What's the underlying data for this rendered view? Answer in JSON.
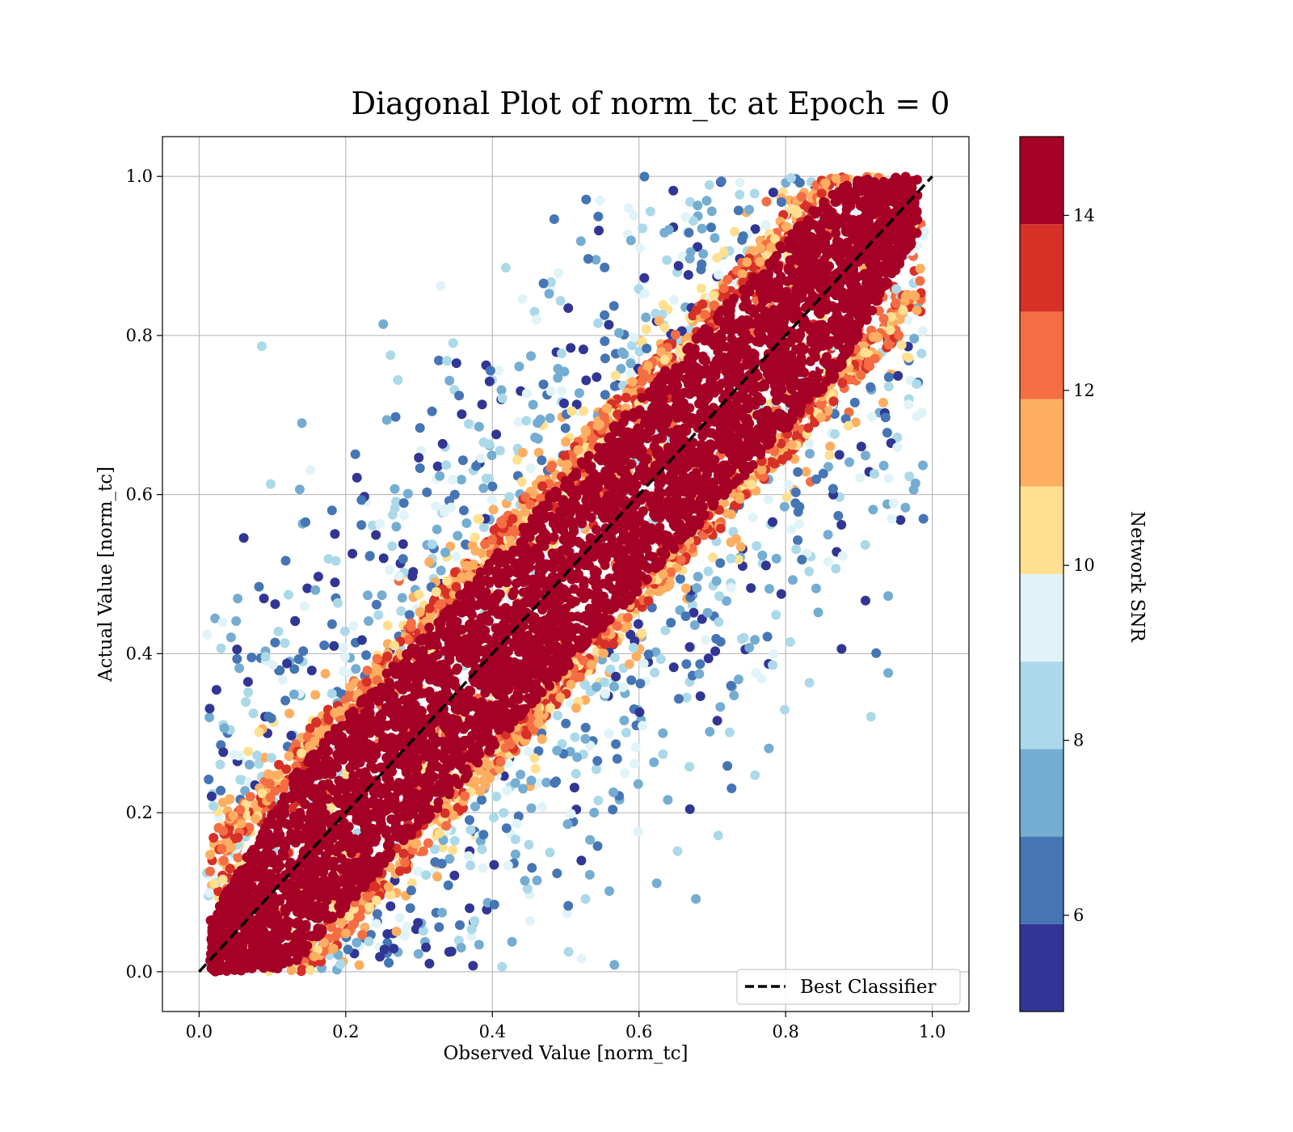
{
  "chart_data": {
    "type": "scatter",
    "title": "Diagonal Plot of norm_tc at Epoch = 0",
    "xlabel": "Observed Value [norm_tc]",
    "ylabel": "Actual Value [norm_tc]",
    "xlim": [
      -0.05,
      1.05
    ],
    "ylim": [
      -0.05,
      1.05
    ],
    "xticks": [
      "0.0",
      "0.2",
      "0.4",
      "0.6",
      "0.8",
      "1.0"
    ],
    "yticks": [
      "0.0",
      "0.2",
      "0.4",
      "0.6",
      "0.8",
      "1.0"
    ],
    "grid": true,
    "reference_line": {
      "name": "Best Classifier",
      "x": [
        0.0,
        1.0
      ],
      "y": [
        0.0,
        1.0
      ],
      "color": "#000000",
      "style": "dashed"
    },
    "legend": {
      "position": "lower-right",
      "entries": [
        "Best Classifier"
      ]
    },
    "colorbar": {
      "label": "Network SNR",
      "ticks": [
        "6",
        "8",
        "10",
        "12",
        "14"
      ],
      "tick_values": [
        6,
        8,
        10,
        12,
        14
      ],
      "range": [
        4.9,
        14.9
      ],
      "bins": [
        {
          "min": 4.9,
          "max": 5.9,
          "color": "#313695"
        },
        {
          "min": 5.9,
          "max": 6.9,
          "color": "#4575b4"
        },
        {
          "min": 6.9,
          "max": 7.9,
          "color": "#74add1"
        },
        {
          "min": 7.9,
          "max": 8.9,
          "color": "#abd9e9"
        },
        {
          "min": 8.9,
          "max": 9.9,
          "color": "#e0f3f8"
        },
        {
          "min": 9.9,
          "max": 10.9,
          "color": "#fee090"
        },
        {
          "min": 10.9,
          "max": 11.9,
          "color": "#fdae61"
        },
        {
          "min": 11.9,
          "max": 12.9,
          "color": "#f46d43"
        },
        {
          "min": 12.9,
          "max": 13.9,
          "color": "#d73027"
        },
        {
          "min": 13.9,
          "max": 14.9,
          "color": "#a50026"
        }
      ]
    },
    "series": [
      {
        "name": "",
        "description": "dense high-SNR band along the diagonal",
        "color": "#a50026",
        "snr": 14.5
      }
    ]
  }
}
